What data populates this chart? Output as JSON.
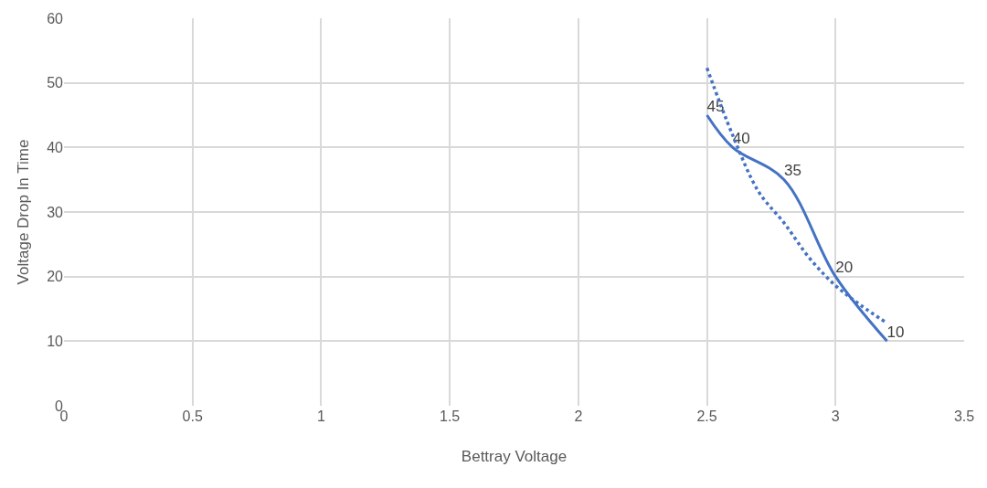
{
  "chart_data": {
    "type": "line",
    "xlabel": "Bettray Voltage",
    "ylabel": "Voltage Drop In Time",
    "xlim": [
      0,
      3.5
    ],
    "xticks": [
      0,
      0.5,
      1,
      1.5,
      2,
      2.5,
      3,
      3.5
    ],
    "ylim": [
      0,
      60
    ],
    "yticks": [
      0,
      10,
      20,
      30,
      40,
      50,
      60
    ],
    "grid": true,
    "legend": false,
    "series": [
      {
        "color": "#4472c4",
        "x": [
          2.5,
          2.6,
          2.8,
          3.0,
          3.2
        ],
        "values": [
          45,
          40,
          35,
          20,
          10
        ],
        "line_style": "solid",
        "data_labels": true
      },
      {
        "color": "#4472c4",
        "x": [
          2.5,
          2.6,
          2.7,
          2.8,
          2.9,
          3.0,
          3.1,
          3.2
        ],
        "values": [
          52.3,
          41.9,
          33.2,
          28.3,
          22.8,
          18.6,
          15.5,
          12.8
        ],
        "line_style": "dotted"
      }
    ]
  }
}
